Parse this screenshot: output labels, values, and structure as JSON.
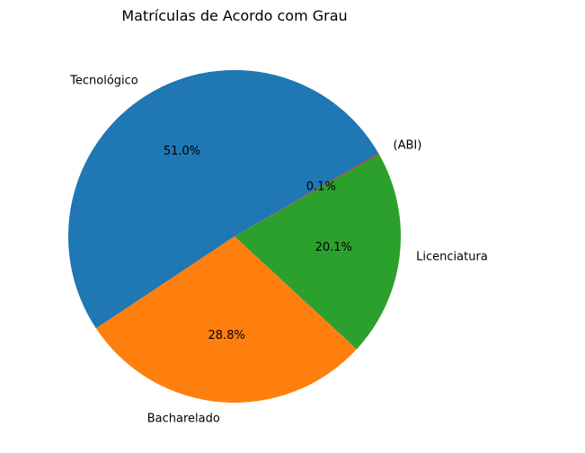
{
  "chart_data": {
    "type": "pie",
    "title": "Matrículas de Acordo com Grau",
    "slices": [
      {
        "label": "Tecnológico",
        "value": 51.0,
        "pct_label": "51.0%",
        "color": "#1f77b4"
      },
      {
        "label": "Bacharelado",
        "value": 28.8,
        "pct_label": "28.8%",
        "color": "#ff7f0e"
      },
      {
        "label": "Licenciatura",
        "value": 20.1,
        "pct_label": "20.1%",
        "color": "#2ca02c"
      },
      {
        "label": "(ABI)",
        "value": 0.1,
        "pct_label": "0.1%",
        "color": "#d62728"
      }
    ],
    "start_angle_deg": 30,
    "direction": "counterclockwise",
    "legend": "none",
    "grid": false
  }
}
